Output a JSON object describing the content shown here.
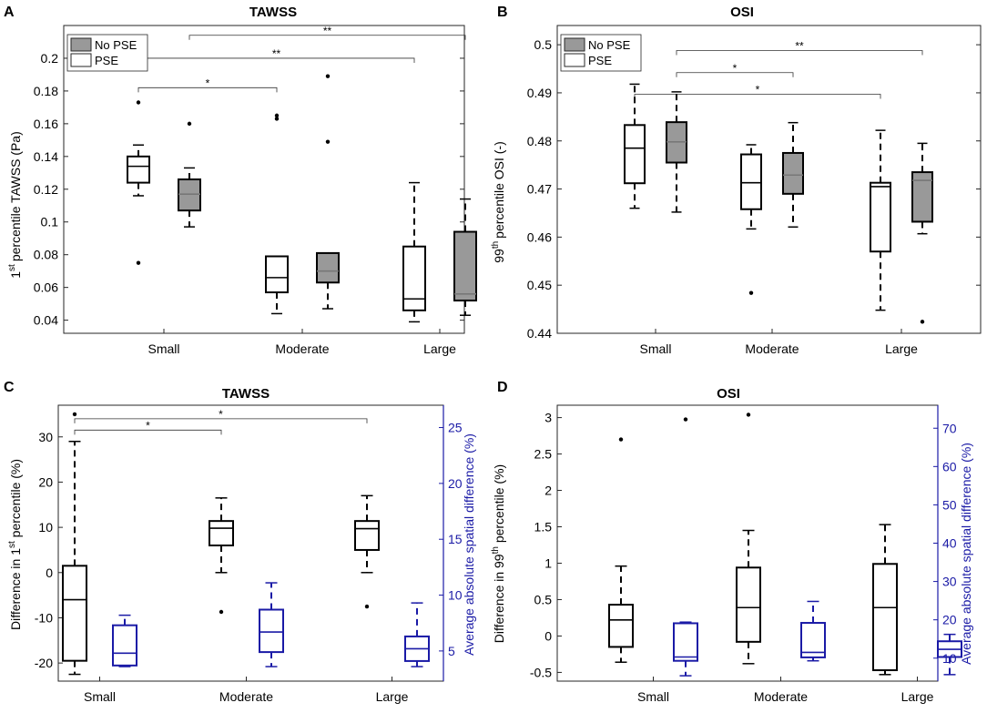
{
  "figure": {
    "panels": [
      {
        "label": "A",
        "title": "TAWSS",
        "ylabel_main": "percentile TAWSS (Pa)",
        "ylabel_prefix": "1",
        "ylabel_sup": "st"
      },
      {
        "label": "B",
        "title": "OSI",
        "ylabel_main": "percentile OSI (-)",
        "ylabel_prefix": "99",
        "ylabel_sup": "th"
      },
      {
        "label": "C",
        "title": "TAWSS",
        "ylabel_main": "Difference in 1",
        "ylabel_sup": "st",
        "ylabel_suffix": " percentile (%)",
        "ylabel_right": "Average absolute spatial difference (%)"
      },
      {
        "label": "D",
        "title": "OSI",
        "ylabel_main": "Difference in 99",
        "ylabel_sup": "th",
        "ylabel_suffix": " percentile (%)",
        "ylabel_right": "Average absolute spatial difference (%)"
      }
    ],
    "colors": {
      "axis": "#000000",
      "blue": "#1a1aa6",
      "gray_fill": "#999999",
      "no_pse_fill": "#999999"
    }
  },
  "chart_data": [
    {
      "id": "A",
      "type": "box",
      "title": "TAWSS",
      "categories": [
        "Small",
        "Moderate",
        "Large"
      ],
      "ylim": [
        0.032,
        0.22
      ],
      "yticks": [
        0.04,
        0.06,
        0.08,
        0.1,
        0.12,
        0.14,
        0.16,
        0.18,
        0.2
      ],
      "ytick_labels": [
        "0.04",
        "0.06",
        "0.08",
        "0.1",
        "0.12",
        "0.14",
        "0.16",
        "0.18",
        "0.2"
      ],
      "legend": [
        {
          "name": "No PSE",
          "fill": "#999999"
        },
        {
          "name": "PSE",
          "fill": "#ffffff"
        }
      ],
      "legend_position": "top-left",
      "series": [
        {
          "name": "PSE",
          "fill": "#ffffff",
          "median_color": "#000000",
          "boxes": [
            {
              "cat": 0,
              "q1": 0.124,
              "med": 0.134,
              "q3": 0.14,
              "wlo": 0.116,
              "whi": 0.147,
              "outliers": [
                0.173,
                0.075
              ]
            },
            {
              "cat": 1,
              "q1": 0.057,
              "med": 0.066,
              "q3": 0.079,
              "wlo": 0.044,
              "whi": 0.079,
              "outliers": [
                0.165,
                0.163
              ]
            },
            {
              "cat": 2,
              "q1": 0.046,
              "med": 0.053,
              "q3": 0.085,
              "wlo": 0.039,
              "whi": 0.124,
              "outliers": []
            }
          ]
        },
        {
          "name": "No PSE",
          "fill": "#999999",
          "median_color": "#777777",
          "boxes": [
            {
              "cat": 0,
              "q1": 0.107,
              "med": 0.117,
              "q3": 0.126,
              "wlo": 0.097,
              "whi": 0.133,
              "outliers": [
                0.16
              ]
            },
            {
              "cat": 1,
              "q1": 0.063,
              "med": 0.07,
              "q3": 0.081,
              "wlo": 0.047,
              "whi": 0.081,
              "outliers": [
                0.189,
                0.149
              ]
            },
            {
              "cat": 2,
              "q1": 0.052,
              "med": 0.056,
              "q3": 0.094,
              "wlo": 0.043,
              "whi": 0.114,
              "outliers": []
            }
          ]
        }
      ],
      "significance": [
        {
          "from": 0,
          "to": 1,
          "y": 0.182,
          "label": "*"
        },
        {
          "from": 0,
          "to": 2,
          "y": 0.2,
          "label": "**"
        },
        {
          "from": 0.5,
          "to": 2.5,
          "y": 0.214,
          "label": "**"
        }
      ]
    },
    {
      "id": "B",
      "type": "box",
      "title": "OSI",
      "categories": [
        "Small",
        "Moderate",
        "Large"
      ],
      "ylim": [
        0.44,
        0.504
      ],
      "yticks": [
        0.44,
        0.45,
        0.46,
        0.47,
        0.48,
        0.49,
        0.5
      ],
      "ytick_labels": [
        "0.44",
        "0.45",
        "0.46",
        "0.47",
        "0.48",
        "0.49",
        "0.5"
      ],
      "legend": [
        {
          "name": "No PSE",
          "fill": "#999999"
        },
        {
          "name": "PSE",
          "fill": "#ffffff"
        }
      ],
      "legend_position": "top-left",
      "series": [
        {
          "name": "PSE",
          "fill": "#ffffff",
          "median_color": "#000000",
          "boxes": [
            {
              "cat": 0,
              "q1": 0.4712,
              "med": 0.4785,
              "q3": 0.4833,
              "wlo": 0.466,
              "whi": 0.4918,
              "outliers": []
            },
            {
              "cat": 1,
              "q1": 0.4658,
              "med": 0.4713,
              "q3": 0.4772,
              "wlo": 0.4617,
              "whi": 0.4792,
              "outliers": [
                0.4484
              ]
            },
            {
              "cat": 2,
              "q1": 0.457,
              "med": 0.4705,
              "q3": 0.4713,
              "wlo": 0.4448,
              "whi": 0.4822,
              "outliers": []
            }
          ]
        },
        {
          "name": "No PSE",
          "fill": "#999999",
          "median_color": "#777777",
          "boxes": [
            {
              "cat": 0,
              "q1": 0.4755,
              "med": 0.4798,
              "q3": 0.4839,
              "wlo": 0.4652,
              "whi": 0.4902,
              "outliers": []
            },
            {
              "cat": 1,
              "q1": 0.469,
              "med": 0.4729,
              "q3": 0.4775,
              "wlo": 0.4621,
              "whi": 0.4838,
              "outliers": []
            },
            {
              "cat": 2,
              "q1": 0.4632,
              "med": 0.4718,
              "q3": 0.4735,
              "wlo": 0.4607,
              "whi": 0.4795,
              "outliers": [
                0.4424
              ]
            }
          ]
        }
      ],
      "significance": [
        {
          "from": 0,
          "to": 2,
          "y": 0.4897,
          "label": "*"
        },
        {
          "from": 0.5,
          "to": 1.5,
          "y": 0.4942,
          "label": "*"
        },
        {
          "from": 0.5,
          "to": 2.5,
          "y": 0.4988,
          "label": "**"
        }
      ]
    },
    {
      "id": "C",
      "type": "box",
      "title": "TAWSS",
      "categories": [
        "Small",
        "Moderate",
        "Large"
      ],
      "ylim": [
        -24,
        37
      ],
      "yticks": [
        -20,
        -10,
        0,
        10,
        20,
        30
      ],
      "ytick_labels": [
        "-20",
        "-10",
        "0",
        "10",
        "20",
        "30"
      ],
      "ylim_right": [
        2.3,
        27
      ],
      "yticks_right": [
        5,
        10,
        15,
        20,
        25
      ],
      "ytick_labels_right": [
        "5",
        "10",
        "15",
        "20",
        "25"
      ],
      "series": [
        {
          "name": "Difference",
          "axis": "left",
          "color": "#000000",
          "boxes": [
            {
              "cat": 0,
              "q1": -19.5,
              "med": -6,
              "q3": 1.5,
              "wlo": -22.5,
              "whi": 29,
              "outliers": [
                35
              ]
            },
            {
              "cat": 1,
              "q1": 6,
              "med": 9.8,
              "q3": 11.4,
              "wlo": 0,
              "whi": 16.5,
              "outliers": [
                -8.7
              ]
            },
            {
              "cat": 2,
              "q1": 5,
              "med": 9.7,
              "q3": 11.4,
              "wlo": 0,
              "whi": 17,
              "outliers": [
                -7.5
              ]
            }
          ]
        },
        {
          "name": "Spatial",
          "axis": "right",
          "color": "#1a1aa6",
          "boxes": [
            {
              "cat": 0,
              "q1": 3.7,
              "med": 4.8,
              "q3": 7.3,
              "wlo": 3.6,
              "whi": 8.2,
              "outliers": []
            },
            {
              "cat": 1,
              "q1": 4.9,
              "med": 6.7,
              "q3": 8.7,
              "wlo": 3.6,
              "whi": 11.1,
              "outliers": []
            },
            {
              "cat": 2,
              "q1": 4.1,
              "med": 5.2,
              "q3": 6.3,
              "wlo": 3.6,
              "whi": 9.3,
              "outliers": []
            }
          ]
        }
      ],
      "significance": [
        {
          "from": 0,
          "to": 1,
          "y": 31.5,
          "label": "*"
        },
        {
          "from": 0,
          "to": 2,
          "y": 34,
          "label": "*"
        }
      ]
    },
    {
      "id": "D",
      "type": "box",
      "title": "OSI",
      "categories": [
        "Small",
        "Moderate",
        "Large"
      ],
      "ylim": [
        -0.62,
        3.17
      ],
      "yticks": [
        -0.5,
        0,
        0.5,
        1,
        1.5,
        2,
        2.5,
        3
      ],
      "ytick_labels": [
        "-0.5",
        "0",
        "0.5",
        "1",
        "1.5",
        "2",
        "2.5",
        "3"
      ],
      "ylim_right": [
        4,
        76
      ],
      "yticks_right": [
        10,
        20,
        30,
        40,
        50,
        60,
        70
      ],
      "ytick_labels_right": [
        "10",
        "20",
        "30",
        "40",
        "50",
        "60",
        "70"
      ],
      "series": [
        {
          "name": "Difference",
          "axis": "left",
          "color": "#000000",
          "boxes": [
            {
              "cat": 0,
              "q1": -0.15,
              "med": 0.22,
              "q3": 0.43,
              "wlo": -0.36,
              "whi": 0.96,
              "outliers": [
                2.7
              ]
            },
            {
              "cat": 1,
              "q1": -0.08,
              "med": 0.39,
              "q3": 0.94,
              "wlo": -0.38,
              "whi": 1.45,
              "outliers": [
                3.04
              ]
            },
            {
              "cat": 2,
              "q1": -0.47,
              "med": 0.39,
              "q3": 0.99,
              "wlo": -0.53,
              "whi": 1.53,
              "outliers": []
            }
          ]
        },
        {
          "name": "Spatial",
          "axis": "right",
          "color": "#1a1aa6",
          "boxes": [
            {
              "cat": 0,
              "q1": 9.3,
              "med": 10.3,
              "q3": 19.1,
              "wlo": 5.4,
              "whi": 19.4,
              "outliers": [
                72.3
              ]
            },
            {
              "cat": 1,
              "q1": 10.2,
              "med": 11.5,
              "q3": 19.2,
              "wlo": 9.3,
              "whi": 24.8,
              "outliers": []
            },
            {
              "cat": 2,
              "q1": 10.3,
              "med": 12.3,
              "q3": 14.4,
              "wlo": 5.7,
              "whi": 16.2,
              "outliers": []
            }
          ]
        }
      ],
      "significance": []
    }
  ]
}
